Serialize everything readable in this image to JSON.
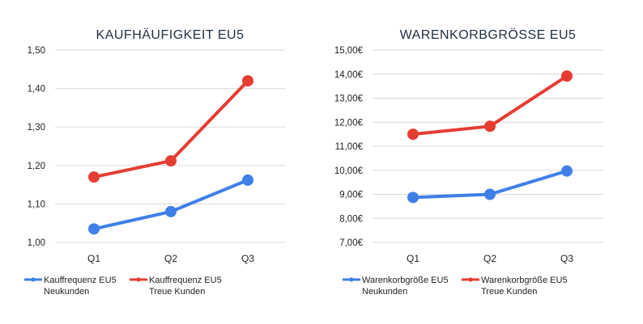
{
  "colors": {
    "new": "#3f7fe8",
    "loyal": "#e63c32",
    "grid": "#d9d9d9",
    "text": "#222222"
  },
  "chart_data": [
    {
      "type": "line",
      "title": "KAUFHÄUFIGKEIT EU5",
      "categories": [
        "Q1",
        "Q2",
        "Q3"
      ],
      "ylim": [
        1.0,
        1.5
      ],
      "yticks": [
        "1,00",
        "1,10",
        "1,20",
        "1,30",
        "1,40",
        "1,50"
      ],
      "grid": true,
      "legend_position": "bottom",
      "series": [
        {
          "key": "new",
          "legend": [
            "Kauffrequenz EU5",
            "Neukunden"
          ],
          "values": [
            1.035,
            1.08,
            1.162
          ]
        },
        {
          "key": "loyal",
          "legend": [
            "Kauffrequenz EU5",
            "Treue Kunden"
          ],
          "values": [
            1.17,
            1.212,
            1.42
          ]
        }
      ]
    },
    {
      "type": "line",
      "title": "WARENKORBGRÖSSE EU5",
      "categories": [
        "Q1",
        "Q2",
        "Q3"
      ],
      "ylim": [
        7.0,
        15.0
      ],
      "yticks": [
        "7,00€",
        "8,00€",
        "9,00€",
        "10,00€",
        "11,00€",
        "12,00€",
        "13,00€",
        "14,00€",
        "15,00€"
      ],
      "grid": true,
      "legend_position": "bottom",
      "series": [
        {
          "key": "new",
          "legend": [
            "Warenkorbgröße EU5",
            "Neukunden"
          ],
          "values": [
            8.87,
            9.0,
            9.97
          ]
        },
        {
          "key": "loyal",
          "legend": [
            "Warenkorbgröße EU5",
            "Treue Kunden"
          ],
          "values": [
            11.5,
            11.83,
            13.92
          ]
        }
      ]
    }
  ]
}
